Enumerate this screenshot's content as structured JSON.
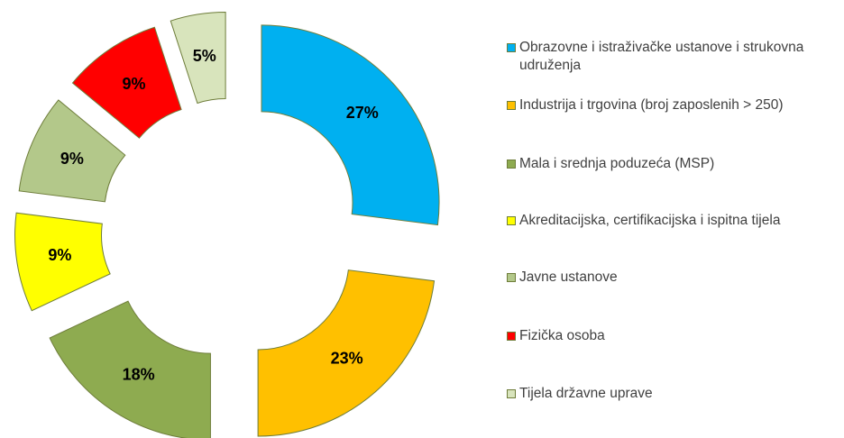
{
  "chart_data": {
    "type": "donut",
    "categories": [
      "Obrazovne i istraživačke ustanove i strukovna udruženja",
      "Industrija i trgovina (broj zaposlenih > 250)",
      "Mala i srednja poduzeća (MSP)",
      "Akreditacijska, certifikacijska i ispitna tijela",
      "Javne ustanove",
      "Fizička osoba",
      "Tijela državne uprave"
    ],
    "values": [
      27,
      23,
      18,
      9,
      9,
      9,
      5
    ],
    "value_labels": [
      "27%",
      "23%",
      "18%",
      "9%",
      "9%",
      "9%",
      "5%"
    ],
    "colors": [
      "#00b0f0",
      "#ffc000",
      "#8eab50",
      "#ffff00",
      "#b3c88a",
      "#ff0000",
      "#d8e4bc"
    ],
    "legend": "right"
  }
}
